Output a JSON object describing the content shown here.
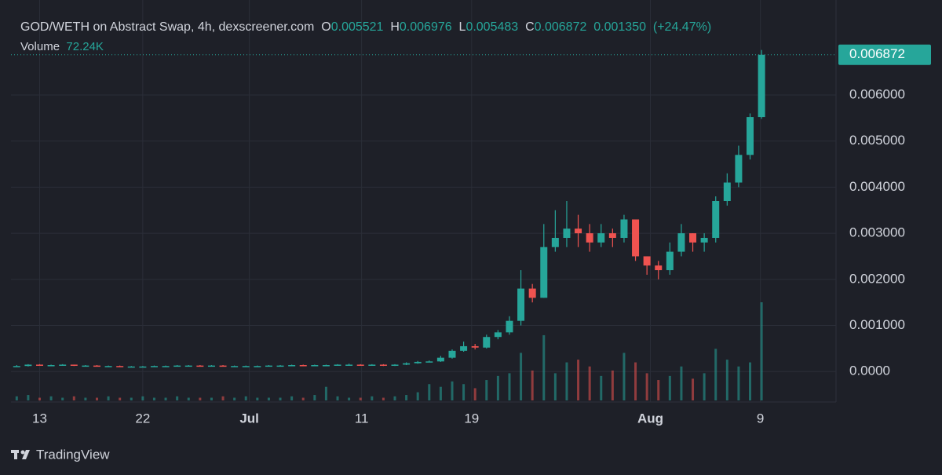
{
  "chart_data": {
    "type": "candlestick",
    "title": "GOD/WETH on Abstract Swap, 4h, dexscreener.com",
    "legend_items": [
      {
        "key": "O",
        "value": "0.005521"
      },
      {
        "key": "H",
        "value": "0.006976"
      },
      {
        "key": "L",
        "value": "0.005483"
      },
      {
        "key": "C",
        "value": "0.006872"
      }
    ],
    "change": "0.001350",
    "change_pct": "(+24.47%)",
    "volume_label": "Volume",
    "volume_value": "72.24K",
    "branding": "TradingView",
    "up_color": "#26a69a",
    "down_color": "#ef5350",
    "categories": [
      null,
      null,
      null,
      null,
      null,
      null,
      null,
      null,
      null,
      null,
      null,
      null,
      null,
      null,
      null,
      null,
      null,
      null,
      null,
      null,
      null,
      null,
      null,
      null,
      null,
      null,
      null,
      null,
      null,
      null,
      null,
      null,
      null,
      null,
      null,
      null,
      null,
      null,
      null,
      null,
      null,
      null,
      null,
      null,
      null,
      null,
      null,
      null,
      null,
      null,
      null,
      null,
      null,
      null,
      null,
      null,
      null,
      null,
      null,
      null,
      null,
      null,
      null,
      null,
      null,
      null
    ],
    "open": [
      0.00011,
      0.00012,
      0.00015,
      0.00014,
      0.00014,
      0.00015,
      0.00013,
      0.00013,
      0.00012,
      0.00012,
      0.00011,
      0.00011,
      0.00011,
      0.00012,
      0.00012,
      0.00013,
      0.00013,
      0.00012,
      0.00013,
      0.00012,
      0.00012,
      0.00012,
      0.00012,
      0.00013,
      0.00013,
      0.00014,
      0.00013,
      0.00014,
      0.00014,
      0.00015,
      0.00015,
      0.00014,
      0.00015,
      0.00013,
      0.00015,
      0.00018,
      0.00021,
      0.00022,
      0.0003,
      0.00045,
      0.00055,
      0.00052,
      0.00075,
      0.00085,
      0.0011,
      0.0018,
      0.0016,
      0.0027,
      0.0029,
      0.0031,
      0.003,
      0.0028,
      0.003,
      0.0029,
      0.0033,
      0.0025,
      0.0023,
      0.0022,
      0.0026,
      0.003,
      0.0028,
      0.0029,
      0.0037,
      0.0041,
      0.0047,
      0.005521
    ],
    "high": [
      0.00014,
      0.00016,
      0.00016,
      0.00015,
      0.00016,
      0.00015,
      0.00014,
      0.00014,
      0.00013,
      0.00013,
      0.00012,
      0.00012,
      0.00013,
      0.00013,
      0.00014,
      0.00014,
      0.00014,
      0.00014,
      0.00014,
      0.00013,
      0.00013,
      0.00013,
      0.00014,
      0.00014,
      0.00015,
      0.00015,
      0.00015,
      0.00015,
      0.00016,
      0.00017,
      0.00016,
      0.00016,
      0.00016,
      0.00016,
      0.0002,
      0.00023,
      0.00024,
      0.00034,
      0.00048,
      0.00065,
      0.0006,
      0.0008,
      0.0009,
      0.0012,
      0.0022,
      0.0019,
      0.0032,
      0.0035,
      0.0037,
      0.0034,
      0.0032,
      0.0032,
      0.0031,
      0.0034,
      0.0033,
      0.0025,
      0.0024,
      0.0028,
      0.0032,
      0.003,
      0.003,
      0.0038,
      0.0043,
      0.0049,
      0.0056,
      0.006976
    ],
    "low": [
      0.0001,
      0.00011,
      0.00013,
      0.00013,
      0.00013,
      0.00012,
      0.00012,
      0.00011,
      0.00011,
      0.0001,
      0.0001,
      0.0001,
      0.0001,
      0.00011,
      0.00011,
      0.00012,
      0.00011,
      0.00011,
      0.00011,
      0.00011,
      0.00011,
      0.00011,
      0.00011,
      0.00012,
      0.00012,
      0.00012,
      0.00012,
      0.00013,
      0.00013,
      0.00014,
      0.00013,
      0.00013,
      0.00012,
      0.00012,
      0.00014,
      0.00017,
      0.0002,
      0.00021,
      0.00028,
      0.00043,
      0.00048,
      0.0005,
      0.0007,
      0.0008,
      0.001,
      0.0015,
      0.0016,
      0.0026,
      0.0027,
      0.0027,
      0.0026,
      0.0027,
      0.0027,
      0.0028,
      0.0024,
      0.0021,
      0.002,
      0.0021,
      0.0025,
      0.0026,
      0.0026,
      0.0028,
      0.0036,
      0.004,
      0.0046,
      0.005483
    ],
    "close": [
      0.00012,
      0.00015,
      0.00014,
      0.00014,
      0.00015,
      0.00013,
      0.00013,
      0.00012,
      0.00012,
      0.00011,
      0.00011,
      0.00011,
      0.00012,
      0.00012,
      0.00013,
      0.00013,
      0.00012,
      0.00013,
      0.00012,
      0.00012,
      0.00012,
      0.00012,
      0.00013,
      0.00013,
      0.00014,
      0.00013,
      0.00014,
      0.00014,
      0.00015,
      0.00015,
      0.00014,
      0.00015,
      0.00013,
      0.00015,
      0.00018,
      0.00021,
      0.00022,
      0.0003,
      0.00045,
      0.00055,
      0.00052,
      0.00075,
      0.00085,
      0.0011,
      0.0018,
      0.0016,
      0.0027,
      0.0029,
      0.0031,
      0.003,
      0.0028,
      0.003,
      0.0029,
      0.0033,
      0.0025,
      0.0023,
      0.0022,
      0.0026,
      0.003,
      0.0028,
      0.0029,
      0.0037,
      0.0041,
      0.0047,
      0.005521,
      0.006872
    ],
    "volume": [
      3,
      4,
      2,
      3,
      2,
      3,
      2,
      2,
      3,
      2,
      2,
      3,
      2,
      2,
      3,
      2,
      2,
      2,
      3,
      2,
      3,
      2,
      2,
      2,
      3,
      2,
      4,
      10,
      3,
      2,
      2,
      3,
      2,
      3,
      4,
      6,
      12,
      10,
      14,
      12,
      9,
      15,
      18,
      20,
      35,
      22,
      48,
      20,
      28,
      30,
      25,
      18,
      22,
      35,
      28,
      20,
      15,
      18,
      25,
      16,
      20,
      38,
      30,
      25,
      28,
      72.24
    ],
    "xlim": [
      -0.5,
      71.5
    ],
    "xticks": [
      {
        "value": 2,
        "label": "13"
      },
      {
        "value": 11,
        "label": "22"
      },
      {
        "value": 20.3,
        "label": "Jul"
      },
      {
        "value": 30.1,
        "label": "11"
      },
      {
        "value": 39.7,
        "label": "19"
      },
      {
        "value": 55.3,
        "label": "Aug"
      },
      {
        "value": 64.9,
        "label": "9"
      }
    ],
    "ylim": [
      -0.00066,
      0.00806
    ],
    "yticks": [
      {
        "value": 0,
        "label": "0.0000"
      },
      {
        "value": 0.001,
        "label": "0.001000"
      },
      {
        "value": 0.002,
        "label": "0.002000"
      },
      {
        "value": 0.003,
        "label": "0.003000"
      },
      {
        "value": 0.004,
        "label": "0.004000"
      },
      {
        "value": 0.005,
        "label": "0.005000"
      },
      {
        "value": 0.006,
        "label": "0.006000"
      }
    ],
    "grid": true
  }
}
